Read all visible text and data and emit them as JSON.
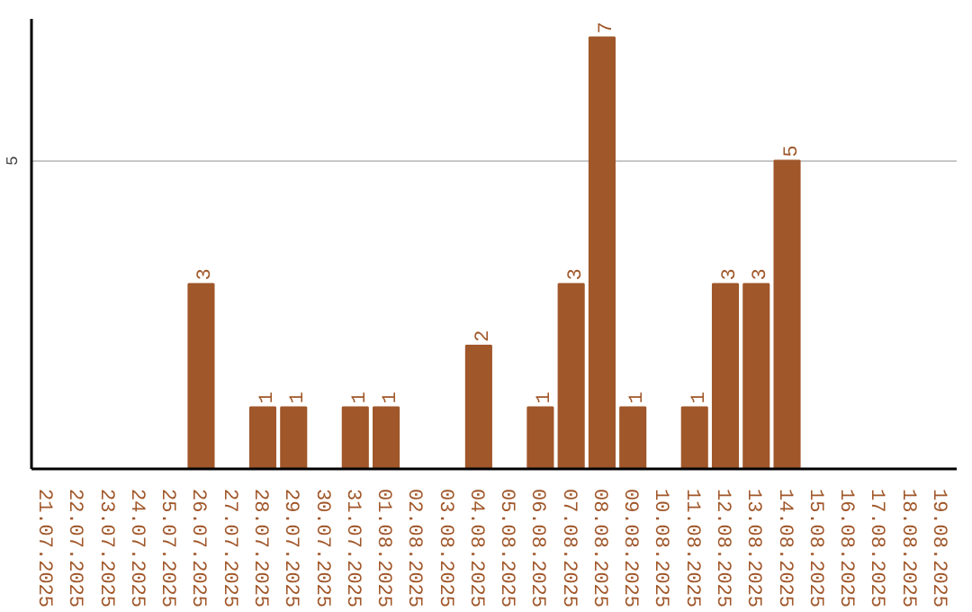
{
  "chart_data": {
    "type": "bar",
    "categories": [
      "21.07.2025",
      "22.07.2025",
      "23.07.2025",
      "24.07.2025",
      "25.07.2025",
      "26.07.2025",
      "27.07.2025",
      "28.07.2025",
      "29.07.2025",
      "30.07.2025",
      "31.07.2025",
      "01.08.2025",
      "02.08.2025",
      "03.08.2025",
      "04.08.2025",
      "05.08.2025",
      "06.08.2025",
      "07.08.2025",
      "08.08.2025",
      "09.08.2025",
      "10.08.2025",
      "11.08.2025",
      "12.08.2025",
      "13.08.2025",
      "14.08.2025",
      "15.08.2025",
      "16.08.2025",
      "17.08.2025",
      "18.08.2025",
      "19.08.2025"
    ],
    "values": [
      0,
      0,
      0,
      0,
      0,
      3,
      0,
      1,
      1,
      0,
      1,
      1,
      0,
      0,
      2,
      0,
      1,
      3,
      7,
      1,
      0,
      1,
      3,
      3,
      5,
      0,
      0,
      0,
      0,
      0
    ],
    "value_labels": [
      null,
      null,
      null,
      null,
      null,
      "3",
      null,
      "1",
      "1",
      null,
      "1",
      "1",
      null,
      null,
      "2",
      null,
      "1",
      "3",
      "7",
      "1",
      null,
      "1",
      "3",
      "3",
      "5",
      null,
      null,
      null,
      null,
      null
    ],
    "color": "#a0572a",
    "ylim": [
      0,
      7.3
    ],
    "yticks": [
      5
    ],
    "grid": "y"
  }
}
